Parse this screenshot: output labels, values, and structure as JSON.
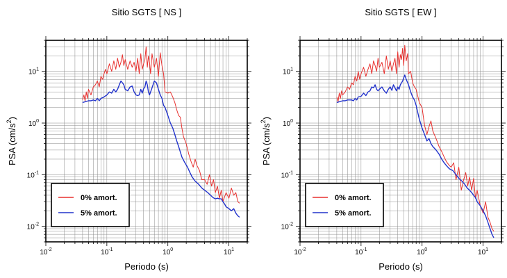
{
  "chart_data": [
    {
      "type": "line",
      "title": "Sitio SGTS [ NS ]",
      "xlabel": "Periodo (s)",
      "ylabel_main": "PSA (cm/s",
      "ylabel_sup": "2",
      "ylabel_end": ")",
      "x_scale": "log",
      "y_scale": "log",
      "xlim": [
        0.01,
        20
      ],
      "ylim": [
        0.005,
        40
      ],
      "x_ticks": [
        {
          "base": "10",
          "exp": "-2"
        },
        {
          "base": "10",
          "exp": "-1"
        },
        {
          "base": "10",
          "exp": "0"
        },
        {
          "base": "10",
          "exp": "1"
        }
      ],
      "y_ticks": [
        {
          "base": "10",
          "exp": "-2"
        },
        {
          "base": "10",
          "exp": "-1"
        },
        {
          "base": "10",
          "exp": "0"
        },
        {
          "base": "10",
          "exp": "1"
        }
      ],
      "grid": true,
      "legend_position": "bottom-left",
      "series": [
        {
          "name": "0% amort.",
          "color": "#e8312f",
          "x": [
            0.04,
            0.042,
            0.044,
            0.046,
            0.048,
            0.05,
            0.055,
            0.06,
            0.065,
            0.07,
            0.075,
            0.08,
            0.085,
            0.09,
            0.095,
            0.1,
            0.11,
            0.12,
            0.13,
            0.14,
            0.15,
            0.16,
            0.17,
            0.18,
            0.19,
            0.2,
            0.22,
            0.24,
            0.26,
            0.28,
            0.3,
            0.32,
            0.34,
            0.36,
            0.38,
            0.4,
            0.42,
            0.44,
            0.46,
            0.48,
            0.5,
            0.52,
            0.55,
            0.6,
            0.65,
            0.7,
            0.75,
            0.8,
            0.85,
            0.9,
            1.0,
            1.1,
            1.2,
            1.3,
            1.4,
            1.5,
            1.6,
            1.7,
            1.8,
            2.0,
            2.2,
            2.4,
            2.6,
            2.8,
            3.0,
            3.3,
            3.6,
            4.0,
            4.4,
            4.8,
            5.2,
            5.6,
            6.0,
            6.5,
            7.0,
            7.5,
            8.0,
            9.0,
            10.0,
            11.0,
            12.0,
            13.0,
            14.0,
            15.0
          ],
          "y": [
            2.8,
            3.5,
            2.7,
            4.0,
            3.0,
            4.5,
            3.5,
            5.0,
            5.5,
            6.5,
            5.0,
            8.0,
            7.0,
            9.0,
            11.0,
            9.0,
            14.0,
            10.0,
            16.0,
            11.0,
            18.0,
            12.0,
            15.0,
            21.0,
            13.0,
            17.0,
            11.0,
            16.0,
            12.0,
            15.0,
            10.0,
            18.0,
            9.0,
            22.0,
            11.0,
            14.0,
            17.0,
            30.0,
            12.0,
            20.0,
            15.0,
            9.0,
            22.0,
            12.0,
            18.0,
            8.0,
            23.0,
            13.0,
            9.0,
            4.0,
            3.8,
            4.0,
            3.2,
            2.5,
            1.8,
            1.4,
            1.3,
            0.8,
            0.55,
            0.4,
            0.25,
            0.18,
            0.14,
            0.2,
            0.15,
            0.12,
            0.08,
            0.08,
            0.065,
            0.1,
            0.06,
            0.08,
            0.045,
            0.06,
            0.035,
            0.05,
            0.03,
            0.045,
            0.035,
            0.055,
            0.04,
            0.045,
            0.03,
            0.028
          ]
        },
        {
          "name": "5% amort.",
          "color": "#2233cc",
          "x": [
            0.04,
            0.045,
            0.05,
            0.055,
            0.06,
            0.065,
            0.07,
            0.075,
            0.08,
            0.09,
            0.1,
            0.11,
            0.12,
            0.13,
            0.14,
            0.15,
            0.16,
            0.17,
            0.18,
            0.19,
            0.2,
            0.22,
            0.24,
            0.26,
            0.28,
            0.3,
            0.32,
            0.34,
            0.36,
            0.38,
            0.4,
            0.42,
            0.44,
            0.46,
            0.48,
            0.5,
            0.55,
            0.6,
            0.65,
            0.7,
            0.75,
            0.8,
            0.85,
            0.9,
            1.0,
            1.1,
            1.2,
            1.3,
            1.4,
            1.5,
            1.7,
            1.9,
            2.1,
            2.3,
            2.5,
            2.8,
            3.2,
            3.6,
            4.0,
            4.5,
            5.0,
            5.5,
            6.0,
            6.5,
            7.0,
            7.5,
            8.0,
            8.5,
            9.0,
            10.0,
            11.0,
            12.0,
            13.0,
            14.0,
            15.0
          ],
          "y": [
            2.5,
            2.6,
            2.7,
            2.7,
            2.8,
            2.7,
            3.0,
            2.7,
            3.0,
            3.2,
            3.5,
            4.0,
            3.8,
            4.5,
            4.0,
            4.5,
            5.5,
            6.5,
            6.0,
            5.5,
            4.5,
            4.2,
            5.0,
            5.2,
            4.0,
            3.5,
            3.4,
            3.5,
            4.5,
            3.8,
            4.6,
            5.0,
            6.5,
            5.5,
            4.0,
            3.5,
            4.8,
            6.5,
            6.0,
            4.5,
            3.5,
            3.0,
            2.2,
            2.0,
            1.4,
            1.0,
            0.8,
            0.6,
            0.45,
            0.35,
            0.22,
            0.17,
            0.14,
            0.11,
            0.09,
            0.075,
            0.065,
            0.055,
            0.05,
            0.045,
            0.04,
            0.036,
            0.034,
            0.035,
            0.034,
            0.034,
            0.03,
            0.027,
            0.024,
            0.022,
            0.02,
            0.022,
            0.018,
            0.016,
            0.015
          ]
        }
      ]
    },
    {
      "type": "line",
      "title": "Sitio SGTS [ EW ]",
      "xlabel": "Periodo (s)",
      "ylabel_main": "PSA (cm/s",
      "ylabel_sup": "2",
      "ylabel_end": ")",
      "x_scale": "log",
      "y_scale": "log",
      "xlim": [
        0.01,
        20
      ],
      "ylim": [
        0.005,
        40
      ],
      "x_ticks": [
        {
          "base": "10",
          "exp": "-2"
        },
        {
          "base": "10",
          "exp": "-1"
        },
        {
          "base": "10",
          "exp": "0"
        },
        {
          "base": "10",
          "exp": "1"
        }
      ],
      "y_ticks": [
        {
          "base": "10",
          "exp": "-2"
        },
        {
          "base": "10",
          "exp": "-1"
        },
        {
          "base": "10",
          "exp": "0"
        },
        {
          "base": "10",
          "exp": "1"
        }
      ],
      "grid": true,
      "legend_position": "bottom-left",
      "series": [
        {
          "name": "0% amort.",
          "color": "#e8312f",
          "x": [
            0.04,
            0.042,
            0.044,
            0.046,
            0.048,
            0.05,
            0.055,
            0.06,
            0.065,
            0.07,
            0.075,
            0.08,
            0.085,
            0.09,
            0.095,
            0.1,
            0.11,
            0.12,
            0.13,
            0.14,
            0.15,
            0.16,
            0.17,
            0.18,
            0.19,
            0.2,
            0.22,
            0.24,
            0.26,
            0.28,
            0.3,
            0.32,
            0.34,
            0.36,
            0.38,
            0.4,
            0.42,
            0.44,
            0.46,
            0.48,
            0.5,
            0.52,
            0.55,
            0.58,
            0.6,
            0.65,
            0.7,
            0.75,
            0.8,
            0.9,
            1.0,
            1.1,
            1.2,
            1.3,
            1.4,
            1.5,
            1.7,
            1.9,
            2.1,
            2.3,
            2.5,
            2.8,
            3.0,
            3.3,
            3.6,
            4.0,
            4.4,
            4.8,
            5.2,
            5.6,
            6.0,
            6.5,
            7.0,
            7.5,
            8.0,
            9.0,
            10.0,
            11.0,
            12.0,
            13.0,
            14.0,
            15.0
          ],
          "y": [
            3.2,
            2.6,
            3.8,
            3.0,
            4.2,
            3.5,
            4.0,
            5.0,
            4.5,
            6.0,
            5.5,
            8.0,
            6.5,
            10.0,
            7.0,
            9.0,
            12.0,
            8.0,
            11.0,
            14.0,
            9.0,
            16.0,
            13.0,
            10.0,
            18.0,
            12.0,
            15.0,
            9.0,
            20.0,
            11.0,
            16.0,
            10.0,
            14.0,
            18.0,
            9.0,
            24.0,
            12.0,
            21.0,
            17.0,
            28.0,
            13.0,
            32.0,
            16.0,
            22.0,
            9.0,
            10.0,
            6.0,
            5.0,
            4.5,
            2.5,
            2.0,
            0.9,
            0.6,
            0.85,
            1.1,
            0.7,
            0.5,
            0.35,
            0.28,
            0.22,
            0.18,
            0.15,
            0.14,
            0.17,
            0.08,
            0.14,
            0.05,
            0.08,
            0.11,
            0.06,
            0.09,
            0.05,
            0.085,
            0.035,
            0.05,
            0.025,
            0.018,
            0.03,
            0.015,
            0.012,
            0.009,
            0.008
          ]
        },
        {
          "name": "5% amort.",
          "color": "#2233cc",
          "x": [
            0.04,
            0.045,
            0.05,
            0.055,
            0.06,
            0.065,
            0.07,
            0.075,
            0.08,
            0.085,
            0.09,
            0.1,
            0.11,
            0.12,
            0.13,
            0.14,
            0.15,
            0.16,
            0.17,
            0.18,
            0.19,
            0.2,
            0.22,
            0.24,
            0.26,
            0.28,
            0.3,
            0.32,
            0.34,
            0.36,
            0.38,
            0.4,
            0.42,
            0.44,
            0.46,
            0.48,
            0.5,
            0.52,
            0.55,
            0.6,
            0.65,
            0.7,
            0.75,
            0.8,
            0.85,
            0.9,
            1.0,
            1.1,
            1.2,
            1.3,
            1.4,
            1.5,
            1.7,
            1.9,
            2.1,
            2.3,
            2.5,
            2.8,
            3.2,
            3.6,
            4.0,
            4.5,
            5.0,
            5.5,
            6.0,
            6.5,
            7.0,
            7.5,
            8.0,
            9.0,
            10.0,
            11.0,
            12.0,
            13.0,
            14.0,
            15.0
          ],
          "y": [
            2.5,
            2.6,
            2.7,
            2.7,
            2.8,
            2.8,
            2.8,
            2.7,
            3.0,
            2.8,
            3.2,
            3.3,
            3.8,
            3.4,
            4.0,
            4.2,
            5.0,
            4.8,
            5.5,
            4.5,
            4.2,
            4.5,
            5.0,
            4.2,
            3.8,
            4.5,
            5.0,
            4.3,
            5.5,
            4.8,
            4.2,
            5.0,
            4.5,
            5.5,
            6.0,
            6.5,
            7.5,
            8.5,
            7.0,
            5.5,
            4.0,
            3.2,
            2.8,
            2.2,
            1.6,
            1.2,
            0.8,
            0.6,
            0.45,
            0.5,
            0.4,
            0.35,
            0.3,
            0.25,
            0.2,
            0.17,
            0.15,
            0.13,
            0.12,
            0.1,
            0.085,
            0.075,
            0.065,
            0.055,
            0.05,
            0.045,
            0.04,
            0.036,
            0.03,
            0.025,
            0.02,
            0.016,
            0.012,
            0.009,
            0.007,
            0.006
          ]
        }
      ]
    }
  ]
}
